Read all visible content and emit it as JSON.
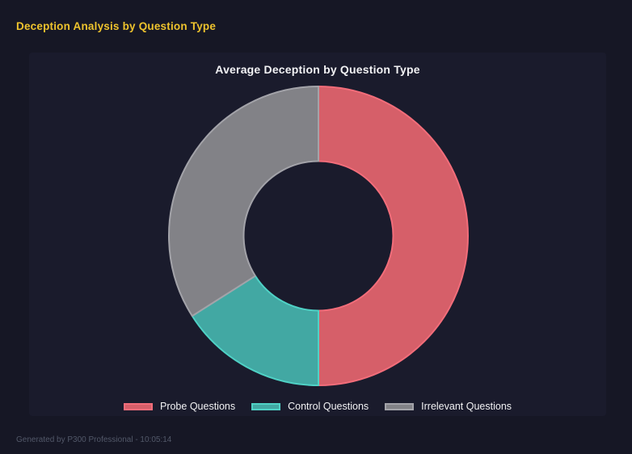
{
  "page": {
    "title": "Deception Analysis by Question Type",
    "footer": "Generated by P300 Professional - 10:05:14"
  },
  "colors": {
    "page_bg": "#161725",
    "panel_bg": "#1a1b2c",
    "header_accent": "#eec32d",
    "text_light": "#f2f2f4",
    "footer_text": "#525869"
  },
  "chart_data": {
    "type": "pie",
    "subtype": "doughnut",
    "title": "Average Deception by Question Type",
    "labels": [
      "Probe Questions",
      "Control Questions",
      "Irrelevant Questions"
    ],
    "values_percent": [
      50,
      16,
      34
    ],
    "fill_colors": [
      "#d65f69",
      "#42a8a3",
      "#828287"
    ],
    "border_colors": [
      "#f26d7a",
      "#4fd1c5",
      "#a3a3a9"
    ],
    "donut_cutout_percent": 50,
    "start_angle_deg": 0,
    "direction": "clockwise",
    "legend_position": "bottom",
    "grid": false
  }
}
